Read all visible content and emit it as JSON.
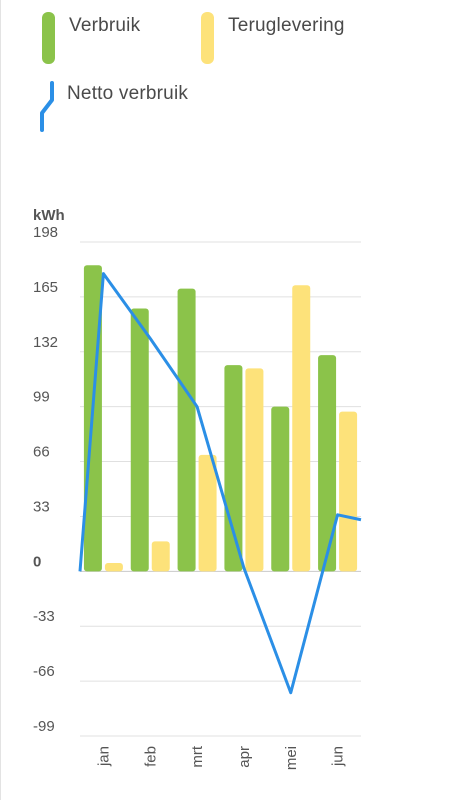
{
  "legend": {
    "items": [
      {
        "label": "Verbruik",
        "color": "#8bc34a",
        "icon": "green-bar-swatch-icon"
      },
      {
        "label": "Teruglevering",
        "color": "#fde27a",
        "icon": "yellow-bar-swatch-icon"
      },
      {
        "label": "Netto verbruik",
        "color": "#2b8fe6",
        "icon": "blue-line-swatch-icon"
      }
    ]
  },
  "chart_data": {
    "type": "bar",
    "unit_label": "kWh",
    "categories": [
      "jan",
      "feb",
      "mrt",
      "apr",
      "mei",
      "jun"
    ],
    "yticks": [
      198,
      165,
      132,
      99,
      66,
      33,
      0,
      -33,
      -66,
      -99
    ],
    "ylim": [
      -99,
      198
    ],
    "grid": true,
    "legend_position": "top-left",
    "series": [
      {
        "name": "Verbruik",
        "type": "bar",
        "color": "#8bc34a",
        "values": [
          184,
          158,
          170,
          124,
          99,
          130
        ]
      },
      {
        "name": "Teruglevering",
        "type": "bar",
        "color": "#fde27a",
        "values": [
          5,
          18,
          70,
          122,
          172,
          96
        ]
      },
      {
        "name": "Netto verbruik",
        "type": "line",
        "color": "#2b8fe6",
        "values": [
          179,
          140,
          99,
          2,
          -73,
          34
        ]
      }
    ],
    "line_edge_values": {
      "start": 0,
      "end": 31
    }
  }
}
